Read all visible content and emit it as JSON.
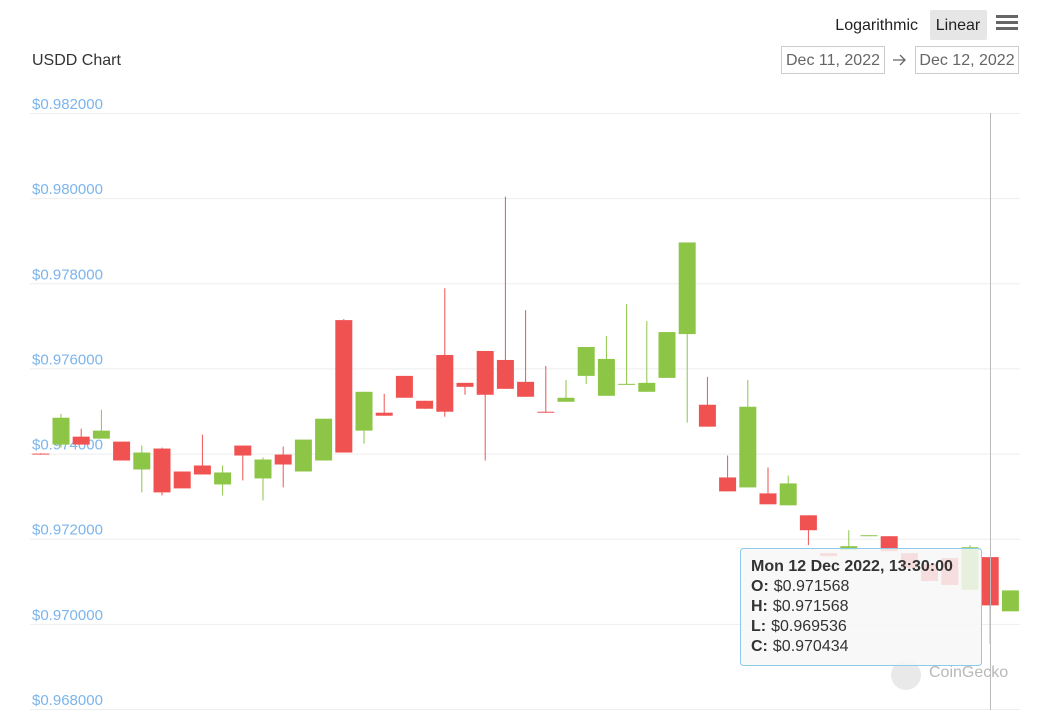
{
  "controls": {
    "scale_options": [
      "Logarithmic",
      "Linear"
    ],
    "from": "Dec 11, 2022",
    "to": "Dec 12, 2022"
  },
  "watermark": "CoinGecko",
  "chart_data": {
    "type": "candlestick",
    "title": "USDD Chart",
    "up_color": "#8dc647",
    "down_color": "#f05252",
    "grid": true,
    "ylim": [
      0.968,
      0.982
    ],
    "yticks": [
      {
        "value": 0.968,
        "label": "$0.968000"
      },
      {
        "value": 0.97,
        "label": "$0.970000"
      },
      {
        "value": 0.972,
        "label": "$0.972000"
      },
      {
        "value": 0.974,
        "label": "$0.974000"
      },
      {
        "value": 0.976,
        "label": "$0.976000"
      },
      {
        "value": 0.978,
        "label": "$0.978000"
      },
      {
        "value": 0.98,
        "label": "$0.980000"
      },
      {
        "value": 0.982,
        "label": "$0.982000"
      }
    ],
    "series": [
      {
        "name": "USDD",
        "open": [
          0.974,
          0.974211,
          0.974398,
          0.974351,
          0.974281,
          0.973626,
          0.974118,
          0.973579,
          0.97372,
          0.973275,
          0.974188,
          0.973416,
          0.973977,
          0.973579,
          0.973837,
          0.977135,
          0.974539,
          0.97496,
          0.975825,
          0.97524,
          0.976316,
          0.975661,
          0.97641,
          0.976199,
          0.975685,
          0.974983,
          0.975217,
          0.975825,
          0.975357,
          0.975615,
          0.975451,
          0.975778,
          0.976807,
          0.975147,
          0.973439,
          0.973205,
          0.973065,
          0.972784,
          0.97255,
          0.971661,
          0.971731,
          0.972059,
          0.972059,
          0.971661,
          0.971404,
          0.971545,
          0.9708,
          0.971568,
          0.970294
        ],
        "high": [
          0.97401,
          0.974936,
          0.974585,
          0.97503,
          0.974281,
          0.974188,
          0.974141,
          0.973579,
          0.974445,
          0.97372,
          0.974188,
          0.973907,
          0.974164,
          0.974328,
          0.974819,
          0.977158,
          0.975451,
          0.975404,
          0.975825,
          0.97524,
          0.977883,
          0.975661,
          0.97641,
          0.980035,
          0.977369,
          0.976059,
          0.975732,
          0.976503,
          0.976761,
          0.977509,
          0.977112,
          0.976854,
          0.978959,
          0.975802,
          0.973954,
          0.975732,
          0.973673,
          0.973486,
          0.97255,
          0.971661,
          0.972199,
          0.972082,
          0.972059,
          0.971661,
          0.971404,
          0.971545,
          0.97185,
          0.971568,
          0.970786
        ],
        "low": [
          0.97398,
          0.974141,
          0.974211,
          0.974351,
          0.973837,
          0.973088,
          0.973018,
          0.973182,
          0.973509,
          0.973018,
          0.973369,
          0.972901,
          0.973206,
          0.973579,
          0.973837,
          0.974024,
          0.974234,
          0.974889,
          0.975311,
          0.975053,
          0.974866,
          0.975381,
          0.973837,
          0.975521,
          0.975334,
          0.97496,
          0.975217,
          0.975638,
          0.975357,
          0.975615,
          0.975451,
          0.975778,
          0.974726,
          0.974632,
          0.973112,
          0.973205,
          0.972808,
          0.972784,
          0.971849,
          0.971591,
          0.971731,
          0.972059,
          0.971708,
          0.97131,
          0.971006,
          0.970913,
          0.9708,
          0.969536,
          0.970294
        ],
        "close": [
          0.973985,
          0.974842,
          0.974211,
          0.974539,
          0.973837,
          0.974024,
          0.973088,
          0.973182,
          0.973509,
          0.973556,
          0.973954,
          0.97386,
          0.973743,
          0.974328,
          0.974819,
          0.974024,
          0.975451,
          0.974889,
          0.975311,
          0.975053,
          0.974983,
          0.975568,
          0.975381,
          0.975521,
          0.975334,
          0.97496,
          0.975311,
          0.976503,
          0.976223,
          0.975638,
          0.975661,
          0.976854,
          0.978959,
          0.974632,
          0.973112,
          0.9751,
          0.972808,
          0.973299,
          0.972199,
          0.971591,
          0.971825,
          0.972082,
          0.971708,
          0.97131,
          0.971006,
          0.970913,
          0.9718,
          0.970434,
          0.970786
        ]
      }
    ],
    "tooltip": {
      "title": "Mon 12 Dec 2022, 13:30:00",
      "rows": [
        {
          "label": "O:",
          "value_label": "$0.971568"
        },
        {
          "label": "H:",
          "value_label": "$0.971568"
        },
        {
          "label": "L:",
          "value_label": "$0.969536"
        },
        {
          "label": "C:",
          "value_label": "$0.970434"
        }
      ]
    }
  }
}
